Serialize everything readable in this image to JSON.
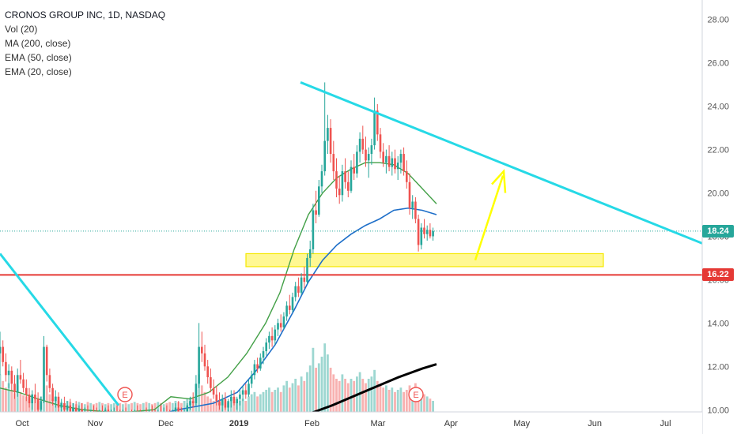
{
  "chart_data": {
    "type": "candlestick",
    "title": "CRONOS GROUP INC, 1D, NASDAQ",
    "indicators": [
      "Vol (20)",
      "MA (200, close)",
      "EMA (50, close)",
      "EMA (20, close)"
    ],
    "y_ticks": [
      "28.00",
      "26.00",
      "24.00",
      "22.00",
      "20.00",
      "18.00",
      "16.00",
      "14.00",
      "12.00",
      "10.00"
    ],
    "ylim": [
      9.9,
      28.9
    ],
    "x_ticks": [
      {
        "label": "Oct",
        "day": 4,
        "bold": false
      },
      {
        "label": "Nov",
        "day": 35,
        "bold": false
      },
      {
        "label": "Dec",
        "day": 65,
        "bold": false
      },
      {
        "label": "2019",
        "day": 96,
        "bold": true
      },
      {
        "label": "Feb",
        "day": 127,
        "bold": false
      },
      {
        "label": "Mar",
        "day": 155,
        "bold": false
      },
      {
        "label": "Apr",
        "day": 186,
        "bold": false
      },
      {
        "label": "May",
        "day": 216,
        "bold": false
      },
      {
        "label": "Jun",
        "day": 247,
        "bold": false
      },
      {
        "label": "Jul",
        "day": 277,
        "bold": false
      }
    ],
    "price_labels": [
      {
        "value": 18.24,
        "text": "18.24",
        "color": "#26a69a"
      },
      {
        "value": 16.22,
        "text": "16.22",
        "color": "#e53935"
      }
    ],
    "candles_ohlc": [
      [
        12.6,
        13.6,
        11.6,
        12.9
      ],
      [
        12.9,
        13.2,
        12.0,
        12.2
      ],
      [
        12.2,
        12.6,
        11.3,
        11.6
      ],
      [
        11.6,
        12.1,
        11.0,
        11.8
      ],
      [
        11.8,
        12.0,
        10.9,
        11.2
      ],
      [
        11.2,
        11.6,
        10.5,
        10.8
      ],
      [
        10.8,
        11.9,
        10.6,
        11.6
      ],
      [
        11.6,
        12.3,
        11.2,
        11.4
      ],
      [
        11.4,
        11.7,
        10.8,
        11.0
      ],
      [
        11.0,
        11.4,
        10.4,
        10.7
      ],
      [
        10.7,
        11.0,
        10.1,
        10.3
      ],
      [
        10.3,
        10.9,
        10.0,
        10.7
      ],
      [
        10.7,
        11.2,
        10.3,
        10.5
      ],
      [
        10.5,
        10.8,
        9.8,
        10.0
      ],
      [
        10.0,
        10.6,
        9.8,
        10.4
      ],
      [
        10.4,
        13.4,
        10.3,
        12.9
      ],
      [
        12.9,
        13.0,
        11.3,
        11.6
      ],
      [
        11.6,
        11.9,
        10.8,
        11.0
      ],
      [
        11.0,
        11.2,
        10.2,
        10.4
      ],
      [
        10.4,
        10.9,
        10.1,
        10.6
      ],
      [
        10.6,
        10.8,
        9.9,
        10.1
      ],
      [
        10.1,
        10.5,
        9.8,
        10.3
      ],
      [
        10.3,
        10.6,
        9.9,
        10.0
      ],
      [
        10.0,
        10.4,
        9.7,
        10.2
      ],
      [
        10.2,
        10.5,
        9.8,
        9.9
      ],
      [
        9.9,
        10.3,
        9.6,
        10.1
      ],
      [
        10.1,
        10.4,
        9.7,
        9.8
      ],
      [
        9.8,
        10.2,
        9.6,
        10.0
      ],
      [
        10.0,
        10.3,
        9.6,
        9.8
      ],
      [
        9.8,
        10.1,
        9.5,
        9.9
      ],
      [
        9.9,
        10.2,
        9.6,
        9.7
      ],
      [
        9.7,
        10.0,
        9.5,
        9.9
      ],
      [
        9.9,
        10.2,
        9.6,
        9.8
      ],
      [
        9.8,
        10.1,
        9.5,
        9.7
      ],
      [
        9.7,
        10.0,
        9.4,
        9.9
      ],
      [
        9.9,
        10.2,
        9.6,
        9.8
      ],
      [
        9.8,
        10.1,
        9.5,
        10.0
      ],
      [
        10.0,
        10.2,
        9.6,
        9.7
      ],
      [
        9.7,
        10.0,
        9.4,
        9.8
      ],
      [
        9.8,
        10.1,
        9.5,
        9.9
      ],
      [
        9.9,
        10.2,
        9.6,
        9.8
      ],
      [
        9.8,
        10.0,
        9.5,
        9.7
      ],
      [
        9.7,
        10.0,
        9.4,
        9.9
      ],
      [
        9.9,
        10.1,
        9.5,
        9.6
      ],
      [
        9.6,
        9.9,
        9.3,
        9.8
      ],
      [
        9.8,
        10.0,
        9.4,
        9.7
      ],
      [
        9.7,
        10.0,
        9.4,
        9.9
      ],
      [
        9.9,
        10.2,
        9.6,
        9.8
      ],
      [
        9.8,
        10.0,
        9.5,
        9.6
      ],
      [
        9.6,
        9.9,
        9.3,
        9.8
      ],
      [
        9.8,
        10.1,
        9.5,
        9.7
      ],
      [
        9.7,
        10.0,
        9.4,
        9.9
      ],
      [
        9.9,
        10.2,
        9.6,
        9.8
      ],
      [
        9.8,
        10.0,
        9.4,
        9.7
      ],
      [
        9.7,
        10.0,
        9.4,
        9.9
      ],
      [
        9.9,
        10.2,
        9.6,
        9.8
      ],
      [
        9.8,
        10.1,
        9.5,
        9.9
      ],
      [
        9.9,
        10.2,
        9.6,
        9.8
      ],
      [
        9.8,
        10.0,
        9.4,
        9.7
      ],
      [
        9.7,
        10.0,
        9.4,
        9.9
      ],
      [
        9.9,
        10.3,
        9.6,
        10.1
      ],
      [
        10.1,
        10.4,
        9.7,
        9.8
      ],
      [
        9.8,
        10.1,
        9.4,
        9.6
      ],
      [
        9.6,
        10.0,
        9.3,
        9.9
      ],
      [
        9.9,
        10.3,
        9.6,
        10.2
      ],
      [
        10.2,
        10.6,
        10.0,
        10.4
      ],
      [
        10.4,
        10.8,
        10.1,
        10.3
      ],
      [
        10.3,
        11.6,
        10.2,
        11.2
      ],
      [
        11.2,
        14.0,
        11.0,
        12.9
      ],
      [
        12.9,
        13.6,
        12.2,
        12.6
      ],
      [
        12.6,
        13.0,
        11.8,
        12.0
      ],
      [
        12.0,
        12.3,
        11.2,
        11.5
      ],
      [
        11.5,
        11.9,
        10.8,
        11.0
      ],
      [
        11.0,
        11.4,
        10.5,
        10.7
      ],
      [
        10.7,
        11.1,
        10.2,
        10.4
      ],
      [
        10.4,
        10.8,
        10.0,
        10.2
      ],
      [
        10.2,
        10.7,
        9.9,
        10.5
      ],
      [
        10.5,
        10.8,
        10.0,
        10.1
      ],
      [
        10.1,
        10.5,
        9.9,
        10.4
      ],
      [
        10.4,
        10.9,
        10.1,
        10.6
      ],
      [
        10.6,
        10.9,
        10.2,
        10.3
      ],
      [
        10.3,
        10.6,
        10.0,
        10.5
      ],
      [
        10.5,
        10.9,
        10.2,
        10.7
      ],
      [
        10.7,
        11.1,
        10.4,
        10.9
      ],
      [
        10.9,
        11.2,
        10.5,
        10.7
      ],
      [
        10.7,
        11.4,
        10.6,
        11.2
      ],
      [
        11.2,
        11.8,
        11.0,
        11.6
      ],
      [
        11.6,
        12.3,
        11.4,
        12.1
      ],
      [
        12.1,
        12.4,
        11.7,
        11.9
      ],
      [
        11.9,
        12.6,
        11.8,
        12.4
      ],
      [
        12.4,
        12.9,
        12.1,
        12.7
      ],
      [
        12.7,
        13.3,
        12.5,
        13.1
      ],
      [
        13.1,
        13.6,
        12.8,
        13.4
      ],
      [
        13.4,
        13.8,
        12.9,
        13.2
      ],
      [
        13.2,
        13.9,
        13.0,
        13.7
      ],
      [
        13.7,
        14.2,
        13.4,
        14.0
      ],
      [
        14.0,
        14.4,
        13.6,
        13.8
      ],
      [
        13.8,
        14.5,
        13.7,
        14.3
      ],
      [
        14.3,
        15.0,
        14.1,
        14.8
      ],
      [
        14.8,
        15.3,
        14.4,
        14.6
      ],
      [
        14.6,
        15.4,
        14.5,
        15.2
      ],
      [
        15.2,
        15.9,
        15.0,
        15.7
      ],
      [
        15.7,
        16.1,
        15.2,
        15.4
      ],
      [
        15.4,
        16.3,
        15.3,
        16.1
      ],
      [
        16.1,
        16.6,
        15.6,
        15.9
      ],
      [
        15.9,
        17.2,
        15.8,
        17.0
      ],
      [
        17.0,
        17.8,
        16.6,
        17.4
      ],
      [
        17.4,
        19.5,
        17.2,
        19.2
      ],
      [
        19.2,
        20.1,
        18.6,
        19.0
      ],
      [
        19.0,
        20.6,
        18.9,
        20.3
      ],
      [
        20.3,
        21.3,
        20.0,
        21.0
      ],
      [
        21.0,
        25.1,
        20.8,
        22.4
      ],
      [
        22.4,
        23.6,
        21.8,
        23.0
      ],
      [
        23.0,
        23.4,
        21.4,
        21.8
      ],
      [
        21.8,
        22.4,
        20.6,
        21.0
      ],
      [
        21.0,
        21.6,
        19.8,
        20.2
      ],
      [
        20.2,
        20.8,
        19.5,
        19.9
      ],
      [
        19.9,
        21.3,
        19.6,
        21.0
      ],
      [
        21.0,
        21.6,
        20.2,
        20.5
      ],
      [
        20.5,
        21.0,
        19.8,
        20.1
      ],
      [
        20.1,
        21.5,
        20.0,
        21.2
      ],
      [
        21.2,
        21.8,
        20.6,
        20.9
      ],
      [
        20.9,
        22.2,
        20.7,
        21.9
      ],
      [
        21.9,
        22.8,
        21.4,
        22.5
      ],
      [
        22.5,
        23.1,
        21.8,
        22.0
      ],
      [
        22.0,
        22.6,
        21.2,
        21.5
      ],
      [
        21.5,
        22.1,
        20.7,
        21.8
      ],
      [
        21.8,
        22.5,
        21.3,
        22.2
      ],
      [
        22.2,
        24.4,
        22.0,
        23.8
      ],
      [
        23.8,
        24.1,
        22.4,
        22.7
      ],
      [
        22.7,
        23.0,
        21.6,
        21.9
      ],
      [
        21.9,
        22.3,
        21.2,
        21.4
      ],
      [
        21.4,
        22.0,
        20.9,
        21.7
      ],
      [
        21.7,
        22.2,
        21.0,
        21.2
      ],
      [
        21.2,
        21.9,
        20.8,
        21.6
      ],
      [
        21.6,
        22.0,
        20.9,
        21.1
      ],
      [
        21.1,
        21.7,
        20.6,
        21.4
      ],
      [
        21.4,
        22.0,
        20.9,
        21.8
      ],
      [
        21.8,
        22.1,
        20.8,
        21.0
      ],
      [
        21.0,
        21.5,
        20.2,
        20.5
      ],
      [
        20.5,
        20.9,
        19.0,
        19.3
      ],
      [
        19.3,
        19.9,
        18.8,
        19.6
      ],
      [
        19.6,
        19.8,
        18.6,
        18.8
      ],
      [
        18.8,
        19.0,
        17.3,
        17.6
      ],
      [
        17.6,
        18.6,
        17.4,
        18.4
      ],
      [
        18.4,
        18.8,
        17.9,
        18.1
      ],
      [
        18.1,
        18.5,
        17.8,
        18.3
      ],
      [
        18.3,
        18.6,
        17.9,
        18.0
      ],
      [
        18.0,
        18.4,
        17.8,
        18.24
      ]
    ],
    "candles_start_day": 0,
    "candle_day_step": 1.3,
    "volume_pct": [
      34,
      28,
      22,
      26,
      20,
      17,
      24,
      18,
      15,
      14,
      12,
      16,
      13,
      11,
      14,
      38,
      24,
      16,
      12,
      14,
      10,
      9,
      8,
      10,
      9,
      8,
      7,
      9,
      8,
      7,
      9,
      8,
      7,
      8,
      9,
      8,
      7,
      8,
      7,
      8,
      9,
      8,
      7,
      8,
      7,
      8,
      9,
      8,
      7,
      8,
      9,
      8,
      7,
      8,
      9,
      8,
      7,
      8,
      9,
      8,
      10,
      9,
      8,
      10,
      12,
      13,
      12,
      20,
      34,
      24,
      18,
      14,
      12,
      10,
      9,
      8,
      10,
      9,
      8,
      10,
      9,
      8,
      10,
      12,
      10,
      14,
      16,
      18,
      14,
      16,
      18,
      20,
      22,
      18,
      20,
      22,
      18,
      24,
      28,
      22,
      26,
      30,
      24,
      32,
      28,
      36,
      42,
      58,
      40,
      44,
      50,
      62,
      52,
      40,
      34,
      30,
      28,
      34,
      30,
      26,
      30,
      28,
      32,
      36,
      30,
      26,
      30,
      32,
      38,
      28,
      24,
      22,
      24,
      20,
      22,
      18,
      20,
      22,
      18,
      20,
      24,
      20,
      26,
      18,
      20,
      16,
      14,
      12,
      10
    ],
    "ema20_path": [
      [
        0,
        11.0
      ],
      [
        8,
        10.8
      ],
      [
        16,
        10.5
      ],
      [
        25,
        10.2
      ],
      [
        35,
        10.0
      ],
      [
        45,
        9.9
      ],
      [
        55,
        9.9
      ],
      [
        65,
        10.0
      ],
      [
        72,
        10.6
      ],
      [
        80,
        10.5
      ],
      [
        88,
        10.8
      ],
      [
        96,
        11.5
      ],
      [
        104,
        12.6
      ],
      [
        112,
        14.0
      ],
      [
        118,
        15.4
      ],
      [
        124,
        17.4
      ],
      [
        130,
        19.0
      ],
      [
        136,
        20.0
      ],
      [
        142,
        20.7
      ],
      [
        148,
        21.1
      ],
      [
        154,
        21.4
      ],
      [
        160,
        21.4
      ],
      [
        166,
        21.3
      ],
      [
        172,
        20.9
      ],
      [
        178,
        20.2
      ],
      [
        184,
        19.5
      ]
    ],
    "ema50_path": [
      [
        40,
        9.2
      ],
      [
        60,
        9.6
      ],
      [
        75,
        10.0
      ],
      [
        90,
        10.3
      ],
      [
        100,
        10.8
      ],
      [
        108,
        11.8
      ],
      [
        116,
        13.0
      ],
      [
        124,
        14.6
      ],
      [
        130,
        15.9
      ],
      [
        136,
        16.9
      ],
      [
        142,
        17.6
      ],
      [
        148,
        18.1
      ],
      [
        154,
        18.5
      ],
      [
        160,
        18.8
      ],
      [
        166,
        19.2
      ],
      [
        172,
        19.3
      ],
      [
        178,
        19.2
      ],
      [
        184,
        19.0
      ]
    ],
    "ma200_path": [
      [
        125,
        9.6
      ],
      [
        140,
        10.2
      ],
      [
        155,
        10.9
      ],
      [
        168,
        11.5
      ],
      [
        178,
        11.9
      ],
      [
        184,
        12.1
      ]
    ],
    "ma200_start_day": 140,
    "trendlines": [
      {
        "color": "#26d9e6",
        "from": [
          -2,
          17.2
        ],
        "to": [
          50,
          10.3
        ]
      },
      {
        "color": "#26d9e6",
        "from": [
          126,
          25.1
        ],
        "to": [
          292,
          17.6
        ]
      }
    ],
    "support_zone": {
      "day_from": 103,
      "day_to": 254,
      "y_from": 16.6,
      "y_to": 17.2
    },
    "horizontal_line": {
      "value": 16.22,
      "color": "#e53935"
    },
    "dotted_line": {
      "value": 18.24,
      "color": "#26a69a"
    },
    "arrow": {
      "from": [
        200,
        17.0
      ],
      "to": [
        212,
        21.2
      ],
      "color": "#ffff00"
    },
    "earnings_markers": [
      {
        "day": 51,
        "label": "E"
      },
      {
        "day": 174,
        "label": "E"
      }
    ]
  }
}
